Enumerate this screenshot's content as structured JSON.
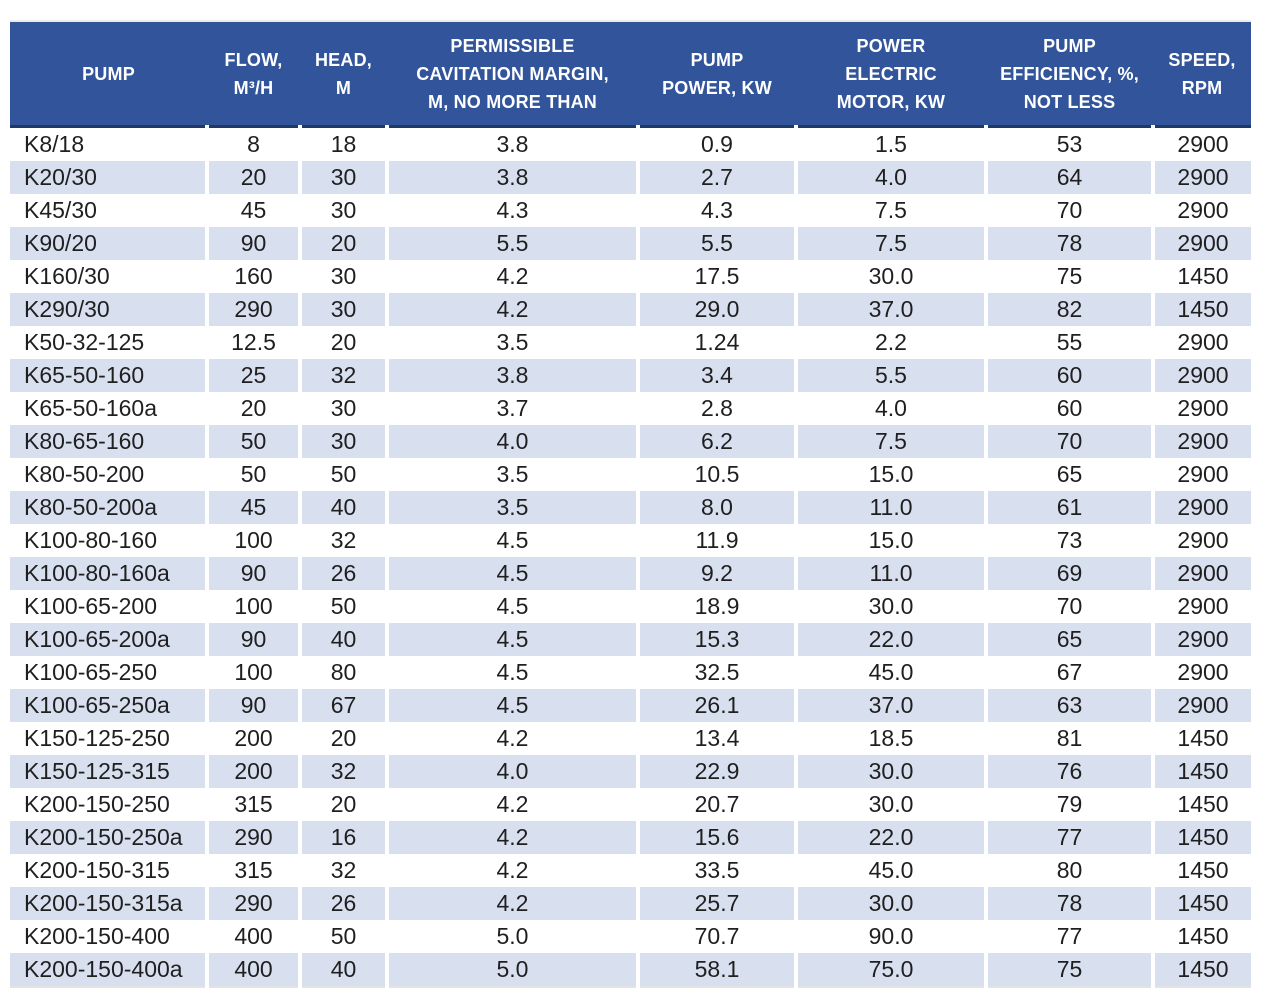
{
  "colors": {
    "header_bg": "#31549B",
    "header_text": "#FFFFFF",
    "header_border": "#1F3864",
    "row_alt_bg": "#D8E0F0",
    "body_text": "#1F1F1F"
  },
  "table": {
    "columns": [
      {
        "key": "pump",
        "lines": [
          "PUMP"
        ]
      },
      {
        "key": "flow",
        "lines": [
          "FLOW,",
          "M³/H"
        ]
      },
      {
        "key": "head",
        "lines": [
          "HEAD,",
          "M"
        ]
      },
      {
        "key": "cavitation_margin",
        "lines": [
          "PERMISSIBLE",
          "CAVITATION MARGIN,",
          "M, NO MORE THAN"
        ]
      },
      {
        "key": "pump_power",
        "lines": [
          "PUMP",
          "POWER, KW"
        ]
      },
      {
        "key": "motor_power",
        "lines": [
          "POWER",
          "ELECTRIC",
          "MOTOR, KW"
        ]
      },
      {
        "key": "efficiency",
        "lines": [
          "PUMP",
          "EFFICIENCY, %,",
          "NOT LESS"
        ]
      },
      {
        "key": "speed",
        "lines": [
          "SPEED,",
          "RPM"
        ]
      }
    ],
    "rows": [
      [
        "K8/18",
        "8",
        "18",
        "3.8",
        "0.9",
        "1.5",
        "53",
        "2900"
      ],
      [
        "K20/30",
        "20",
        "30",
        "3.8",
        "2.7",
        "4.0",
        "64",
        "2900"
      ],
      [
        "K45/30",
        "45",
        "30",
        "4.3",
        "4.3",
        "7.5",
        "70",
        "2900"
      ],
      [
        "K90/20",
        "90",
        "20",
        "5.5",
        "5.5",
        "7.5",
        "78",
        "2900"
      ],
      [
        "K160/30",
        "160",
        "30",
        "4.2",
        "17.5",
        "30.0",
        "75",
        "1450"
      ],
      [
        "K290/30",
        "290",
        "30",
        "4.2",
        "29.0",
        "37.0",
        "82",
        "1450"
      ],
      [
        "K50-32-125",
        "12.5",
        "20",
        "3.5",
        "1.24",
        "2.2",
        "55",
        "2900"
      ],
      [
        "K65-50-160",
        "25",
        "32",
        "3.8",
        "3.4",
        "5.5",
        "60",
        "2900"
      ],
      [
        "K65-50-160a",
        "20",
        "30",
        "3.7",
        "2.8",
        "4.0",
        "60",
        "2900"
      ],
      [
        "K80-65-160",
        "50",
        "30",
        "4.0",
        "6.2",
        "7.5",
        "70",
        "2900"
      ],
      [
        "K80-50-200",
        "50",
        "50",
        "3.5",
        "10.5",
        "15.0",
        "65",
        "2900"
      ],
      [
        "K80-50-200a",
        "45",
        "40",
        "3.5",
        "8.0",
        "11.0",
        "61",
        "2900"
      ],
      [
        "K100-80-160",
        "100",
        "32",
        "4.5",
        "11.9",
        "15.0",
        "73",
        "2900"
      ],
      [
        "K100-80-160a",
        "90",
        "26",
        "4.5",
        "9.2",
        "11.0",
        "69",
        "2900"
      ],
      [
        "K100-65-200",
        "100",
        "50",
        "4.5",
        "18.9",
        "30.0",
        "70",
        "2900"
      ],
      [
        "K100-65-200a",
        "90",
        "40",
        "4.5",
        "15.3",
        "22.0",
        "65",
        "2900"
      ],
      [
        "K100-65-250",
        "100",
        "80",
        "4.5",
        "32.5",
        "45.0",
        "67",
        "2900"
      ],
      [
        "K100-65-250a",
        "90",
        "67",
        "4.5",
        "26.1",
        "37.0",
        "63",
        "2900"
      ],
      [
        "K150-125-250",
        "200",
        "20",
        "4.2",
        "13.4",
        "18.5",
        "81",
        "1450"
      ],
      [
        "K150-125-315",
        "200",
        "32",
        "4.0",
        "22.9",
        "30.0",
        "76",
        "1450"
      ],
      [
        "K200-150-250",
        "315",
        "20",
        "4.2",
        "20.7",
        "30.0",
        "79",
        "1450"
      ],
      [
        "K200-150-250a",
        "290",
        "16",
        "4.2",
        "15.6",
        "22.0",
        "77",
        "1450"
      ],
      [
        "K200-150-315",
        "315",
        "32",
        "4.2",
        "33.5",
        "45.0",
        "80",
        "1450"
      ],
      [
        "K200-150-315a",
        "290",
        "26",
        "4.2",
        "25.7",
        "30.0",
        "78",
        "1450"
      ],
      [
        "K200-150-400",
        "400",
        "50",
        "5.0",
        "70.7",
        "90.0",
        "77",
        "1450"
      ],
      [
        "K200-150-400a",
        "400",
        "40",
        "5.0",
        "58.1",
        "75.0",
        "75",
        "1450"
      ]
    ]
  }
}
